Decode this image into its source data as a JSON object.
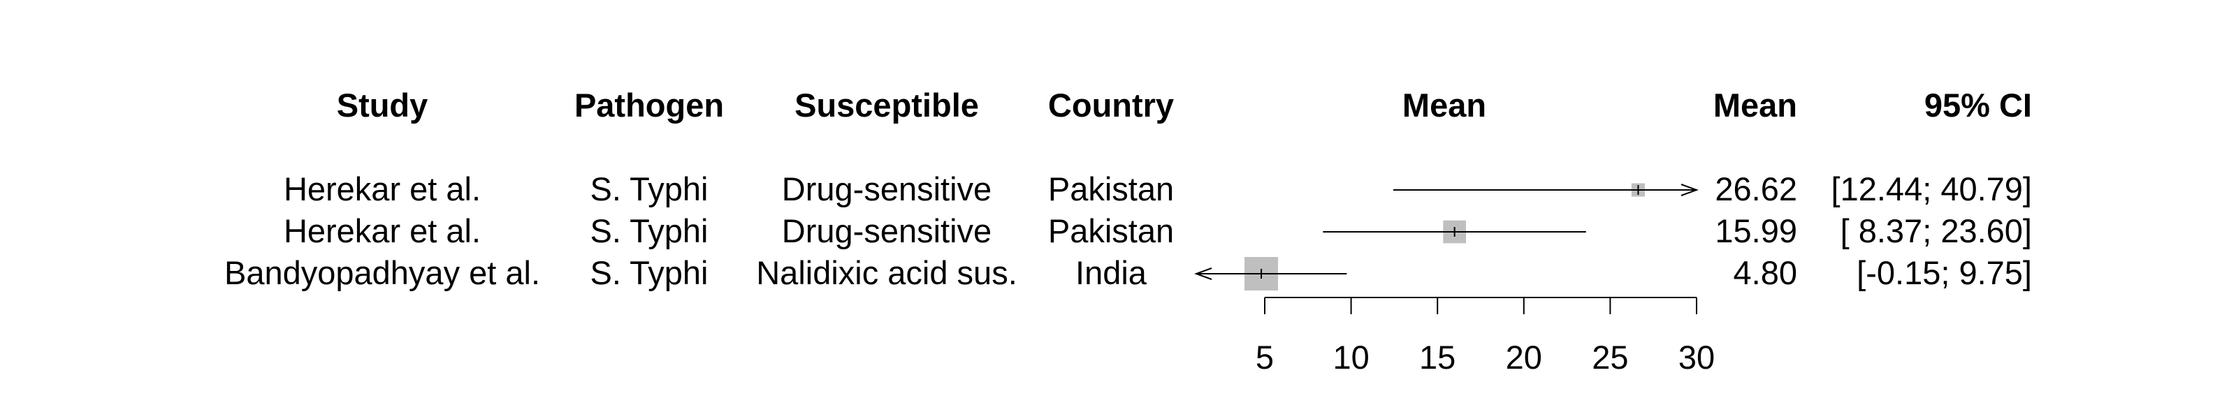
{
  "headers": {
    "study": "Study",
    "pathogen": "Pathogen",
    "susceptible": "Susceptible",
    "country": "Country",
    "plot_title": "Mean",
    "mean": "Mean",
    "ci": "95% CI"
  },
  "rows": [
    {
      "study": "Herekar et al.",
      "pathogen": "S. Typhi",
      "susceptible": "Drug-sensitive",
      "country": "Pakistan",
      "mean_text": "26.62",
      "ci_text": "[12.44; 40.79]"
    },
    {
      "study": "Herekar et al.",
      "pathogen": "S. Typhi",
      "susceptible": "Drug-sensitive",
      "country": "Pakistan",
      "mean_text": "15.99",
      "ci_text": "[ 8.37; 23.60]"
    },
    {
      "study": "Bandyopadhyay et al.",
      "pathogen": "S. Typhi",
      "susceptible": "Nalidixic acid sus.",
      "country": "India",
      "mean_text": "4.80",
      "ci_text": "[-0.15;  9.75]"
    }
  ],
  "chart_data": {
    "type": "forest",
    "xlim": [
      0,
      30
    ],
    "ticks": [
      5,
      10,
      15,
      20,
      25,
      30
    ],
    "tick_labels": [
      "5",
      "10",
      "15",
      "20",
      "25",
      "30"
    ],
    "points": [
      {
        "mean": 26.62,
        "lower": 12.44,
        "upper": 40.79,
        "weight": 0.15
      },
      {
        "mean": 15.99,
        "lower": 8.37,
        "upper": 23.6,
        "weight": 0.55
      },
      {
        "mean": 4.8,
        "lower": -0.15,
        "upper": 9.75,
        "weight": 1.0
      }
    ],
    "colors": {
      "box": "#bfbfbf",
      "line": "#000000"
    }
  }
}
